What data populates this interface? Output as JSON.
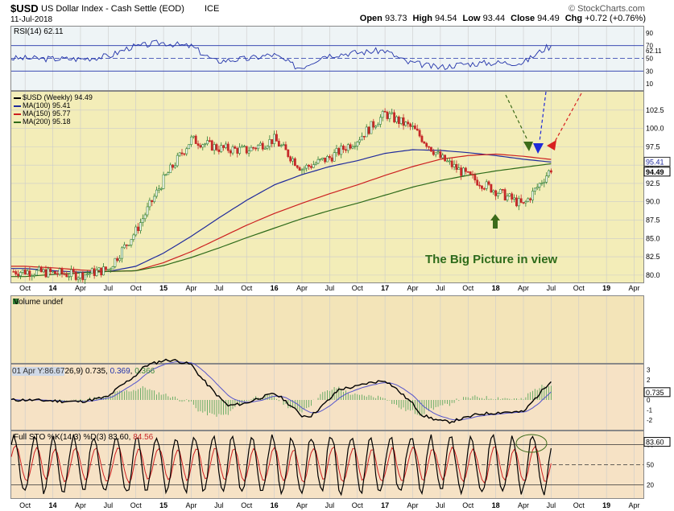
{
  "header": {
    "symbol": "$USD",
    "name": "US Dollar Index - Cash Settle (EOD)",
    "exchange": "ICE",
    "date": "11-Jul-2018",
    "brand": "© StockCharts.com",
    "quote": [
      {
        "k": "Open",
        "v": "93.73"
      },
      {
        "k": "High",
        "v": "94.54"
      },
      {
        "k": "Low",
        "v": "93.44"
      },
      {
        "k": "Close",
        "v": "94.49"
      },
      {
        "k": "Chg",
        "v": "+0.72 (+0.76%)"
      }
    ]
  },
  "colors": {
    "price_bg": "#f3edb8",
    "osc_bg": "#f6e2c5",
    "vol_bg": "#f3e4b8",
    "up": "#2e7d32",
    "down": "#c62828",
    "ma100": "#1f2a9c",
    "ma150": "#cc1f1f",
    "ma200": "#2e6b1a"
  },
  "annotation": "The Big Picture in view",
  "x_ticks": [
    "Oct",
    "14",
    "Apr",
    "Jul",
    "Oct",
    "15",
    "Apr",
    "Jul",
    "Oct",
    "16",
    "Apr",
    "Jul",
    "Oct",
    "17",
    "Apr",
    "Jul",
    "Oct",
    "18",
    "Apr",
    "Jul",
    "Oct",
    "19",
    "Apr"
  ],
  "panels": {
    "rsi": {
      "label": "RSI(14) 62.11",
      "ticks": [
        "90",
        "70",
        "50",
        "30",
        "10"
      ],
      "last": "62.11"
    },
    "price": {
      "legend": [
        {
          "name": "$USD (Weekly) 94.49",
          "color": "#000000"
        },
        {
          "name": "MA(100) 95.41",
          "color": "#1f2a9c"
        },
        {
          "name": "MA(150) 95.77",
          "color": "#cc1f1f"
        },
        {
          "name": "MA(200) 95.18",
          "color": "#2e6b1a"
        }
      ],
      "ticks": [
        "102.5",
        "100.0",
        "97.5",
        "95.0",
        "92.5",
        "90.0",
        "87.5",
        "85.0",
        "82.5",
        "80.0"
      ],
      "last_tags": [
        "95.41",
        "94.49"
      ]
    },
    "volume": {
      "label": "Volume undef"
    },
    "macd": {
      "prefix": "01 Apr Y:86.67",
      "label": "26,9)",
      "v1": "0.735",
      "v2": "0.369",
      "v3": "0.366",
      "ticks": [
        "3",
        "2",
        "1",
        "0",
        "-1",
        "-2"
      ],
      "last": "0.735"
    },
    "sto": {
      "label": "Full STO %K(14,3) %D(3)",
      "k": "83.60",
      "d": "84.56",
      "ticks": [
        "80",
        "50",
        "20"
      ],
      "last": "83.60"
    }
  },
  "chart_data": {
    "type": "line",
    "title": "US Dollar Index - Cash Settle (EOD)",
    "x": [
      "2013-10",
      "2014-01",
      "2014-04",
      "2014-07",
      "2014-10",
      "2015-01",
      "2015-04",
      "2015-07",
      "2015-10",
      "2016-01",
      "2016-04",
      "2016-07",
      "2016-10",
      "2017-01",
      "2017-04",
      "2017-07",
      "2017-10",
      "2018-01",
      "2018-04",
      "2018-07"
    ],
    "series": [
      {
        "name": "$USD (Weekly)",
        "values": [
          80.5,
          80.3,
          80.0,
          80.8,
          86.0,
          93.0,
          98.5,
          97.3,
          97.0,
          98.5,
          94.5,
          96.0,
          98.5,
          102.0,
          100.0,
          96.0,
          93.5,
          91.5,
          89.5,
          94.49
        ]
      },
      {
        "name": "MA(100)",
        "values": [
          80.9,
          80.6,
          80.4,
          80.5,
          81.2,
          83.0,
          85.3,
          87.8,
          90.2,
          92.3,
          93.7,
          94.8,
          95.6,
          96.6,
          97.1,
          97.0,
          96.7,
          96.3,
          95.8,
          95.41
        ]
      },
      {
        "name": "MA(150)",
        "values": [
          81.2,
          81.0,
          80.7,
          80.5,
          80.6,
          81.7,
          83.2,
          85.0,
          86.8,
          88.4,
          89.8,
          91.1,
          92.3,
          93.6,
          94.8,
          95.8,
          96.3,
          96.5,
          96.2,
          95.77
        ]
      },
      {
        "name": "MA(200)",
        "values": [
          79.8,
          80.1,
          80.3,
          80.5,
          80.6,
          81.3,
          82.4,
          83.7,
          85.1,
          86.4,
          87.7,
          88.8,
          89.8,
          90.9,
          92.0,
          92.9,
          93.6,
          94.2,
          94.7,
          95.18
        ]
      }
    ],
    "ylim": [
      79.0,
      105.0
    ],
    "panels": {
      "RSI(14)": {
        "last": 62.11,
        "ylim": [
          10,
          90
        ]
      },
      "MACD": {
        "values": [
          0.735,
          0.369,
          0.366
        ]
      },
      "Full STO %K(14,3) %D(3)": {
        "k": 83.6,
        "d": 84.56,
        "ylim": [
          0,
          100
        ]
      }
    }
  }
}
